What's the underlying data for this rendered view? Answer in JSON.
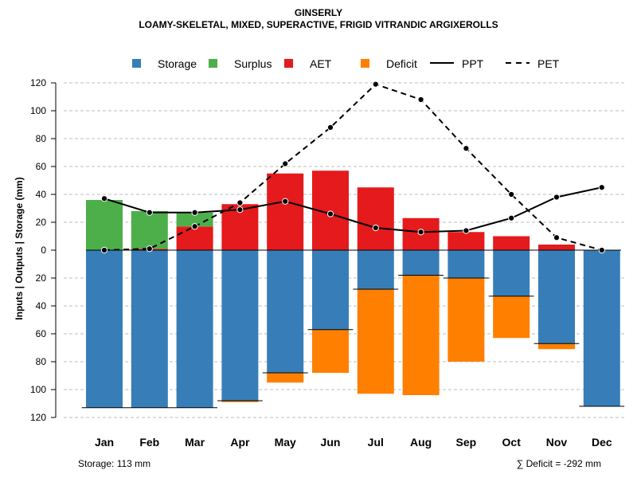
{
  "header": {
    "title": "GINSERLY",
    "subtitle": "LOAMY-SKELETAL, MIXED, SUPERACTIVE, FRIGID VITRANDIC ARGIXEROLLS"
  },
  "footer": {
    "storage_note": "Storage: 113 mm",
    "deficit_note": "∑ Deficit = -292 mm"
  },
  "chart_data": {
    "type": "bar",
    "title": "GINSERLY",
    "subtitle": "LOAMY-SKELETAL, MIXED, SUPERACTIVE, FRIGID VITRANDIC ARGIXEROLLS",
    "xlabel": "",
    "ylabel": "Inputs | Outputs | Storage     (mm)",
    "ylim": [
      -120,
      120
    ],
    "yticks": [
      -120,
      -100,
      -80,
      -60,
      -40,
      -20,
      0,
      20,
      40,
      60,
      80,
      100,
      120
    ],
    "ytick_labels": [
      "120",
      "100",
      "80",
      "60",
      "40",
      "20",
      "0",
      "20",
      "40",
      "60",
      "80",
      "100",
      "120"
    ],
    "grid": true,
    "legend_position": "top",
    "categories": [
      "Jan",
      "Feb",
      "Mar",
      "Apr",
      "May",
      "Jun",
      "Jul",
      "Aug",
      "Sep",
      "Oct",
      "Nov",
      "Dec"
    ],
    "series": [
      {
        "name": "Storage",
        "kind": "bar-down",
        "color": "#377EB8",
        "values": [
          113,
          113,
          113,
          108,
          88,
          57,
          28,
          18,
          20,
          33,
          67,
          112
        ]
      },
      {
        "name": "Surplus",
        "kind": "bar-up-stack",
        "color": "#4DAF4A",
        "values": [
          36,
          27,
          10,
          0,
          0,
          0,
          0,
          0,
          0,
          0,
          0,
          0
        ]
      },
      {
        "name": "AET",
        "kind": "bar-up",
        "color": "#E41A1C",
        "values": [
          0,
          1,
          17,
          33,
          55,
          57,
          45,
          23,
          13,
          10,
          4,
          0
        ]
      },
      {
        "name": "Deficit",
        "kind": "bar-down-stack",
        "color": "#FF7F00",
        "values": [
          0,
          0,
          0,
          1,
          7,
          31,
          75,
          86,
          60,
          30,
          4,
          0
        ]
      },
      {
        "name": "PPT",
        "kind": "line-solid",
        "color": "#000000",
        "values": [
          37,
          27,
          27,
          29,
          35,
          26,
          16,
          13,
          14,
          23,
          38,
          45
        ]
      },
      {
        "name": "PET",
        "kind": "line-dashed",
        "color": "#000000",
        "values": [
          0,
          1,
          17,
          34,
          62,
          88,
          119,
          108,
          73,
          40,
          9,
          0
        ]
      }
    ],
    "legend": [
      "Storage",
      "Surplus",
      "AET",
      "Deficit",
      "PPT",
      "PET"
    ]
  }
}
